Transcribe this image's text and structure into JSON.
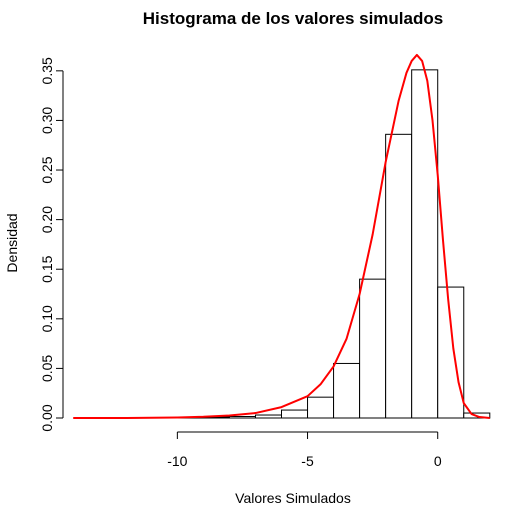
{
  "chart_data": {
    "type": "bar",
    "title": "Histograma de los valores simulados",
    "xlabel": "Valores Simulados",
    "ylabel": "Densidad",
    "xlim": [
      -14.2,
      2.2
    ],
    "ylim": [
      0,
      0.37
    ],
    "x_ticks": [
      {
        "value": -10,
        "label": "-10"
      },
      {
        "value": -5,
        "label": "-5"
      },
      {
        "value": 0,
        "label": "0"
      }
    ],
    "y_ticks": [
      {
        "value": 0.0,
        "label": "0.00"
      },
      {
        "value": 0.05,
        "label": "0.05"
      },
      {
        "value": 0.1,
        "label": "0.10"
      },
      {
        "value": 0.15,
        "label": "0.15"
      },
      {
        "value": 0.2,
        "label": "0.20"
      },
      {
        "value": 0.25,
        "label": "0.25"
      },
      {
        "value": 0.3,
        "label": "0.30"
      },
      {
        "value": 0.35,
        "label": "0.35"
      }
    ],
    "bins": [
      {
        "start": -10,
        "end": -9,
        "density": 0.0005
      },
      {
        "start": -9,
        "end": -8,
        "density": 0.001
      },
      {
        "start": -8,
        "end": -7,
        "density": 0.0015
      },
      {
        "start": -7,
        "end": -6,
        "density": 0.003
      },
      {
        "start": -6,
        "end": -5,
        "density": 0.008
      },
      {
        "start": -5,
        "end": -4,
        "density": 0.021
      },
      {
        "start": -4,
        "end": -3,
        "density": 0.055
      },
      {
        "start": -3,
        "end": -2,
        "density": 0.14
      },
      {
        "start": -2,
        "end": -1,
        "density": 0.286
      },
      {
        "start": -1,
        "end": 0,
        "density": 0.351
      },
      {
        "start": 0,
        "end": 1,
        "density": 0.132
      },
      {
        "start": 1,
        "end": 2,
        "density": 0.005
      }
    ],
    "density_curve": {
      "color": "#ff0000",
      "x": [
        -14.0,
        -12.0,
        -10.0,
        -9.0,
        -8.0,
        -7.0,
        -6.0,
        -5.0,
        -4.5,
        -4.0,
        -3.5,
        -3.0,
        -2.5,
        -2.0,
        -1.5,
        -1.2,
        -1.0,
        -0.8,
        -0.6,
        -0.4,
        -0.2,
        0.0,
        0.2,
        0.4,
        0.6,
        0.8,
        1.0,
        1.3,
        1.6,
        2.0
      ],
      "y": [
        0.0,
        0.0,
        0.0005,
        0.0012,
        0.0025,
        0.005,
        0.011,
        0.022,
        0.034,
        0.052,
        0.08,
        0.125,
        0.185,
        0.258,
        0.32,
        0.348,
        0.36,
        0.366,
        0.36,
        0.34,
        0.3,
        0.245,
        0.18,
        0.12,
        0.07,
        0.036,
        0.015,
        0.004,
        0.001,
        0.0
      ]
    },
    "grid": false,
    "bar_fill": "#ffffff",
    "bar_stroke": "#000000"
  }
}
